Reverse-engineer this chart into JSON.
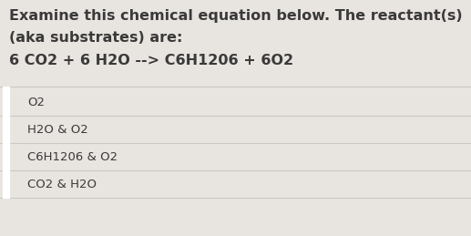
{
  "title_line1": "Examine this chemical equation below. The reactant(s)",
  "title_line2": "(aka substrates) are:",
  "equation": "6 CO2 + 6 H2O --> C6H1206 + 6O2",
  "options": [
    "O2",
    "H2O & O2",
    "C6H1206 & O2",
    "CO2 & H2O"
  ],
  "bg_color": "#e8e4df",
  "white_bar_color": "#ffffff",
  "text_color": "#3a3a3a",
  "divider_color": "#ccc8c2",
  "title_fontsize": 11.5,
  "equation_fontsize": 11.5,
  "option_fontsize": 9.5
}
